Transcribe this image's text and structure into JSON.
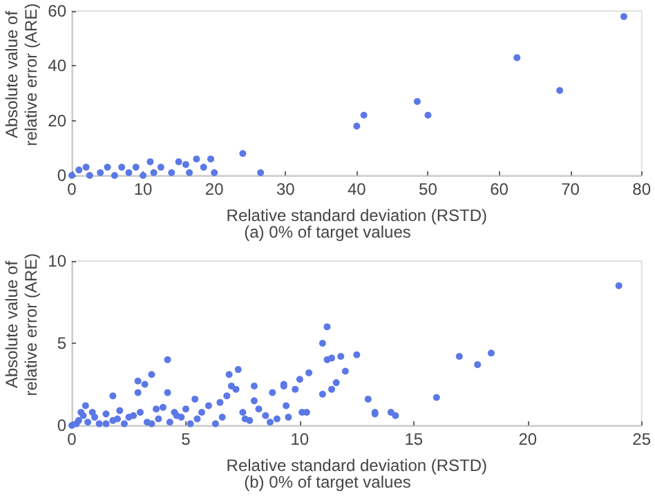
{
  "chart_data": [
    {
      "type": "scatter",
      "xlabel": "Relative standard deviation (RSTD)",
      "ylabel": "Absolute value of relative error (ARE)",
      "annotations": [
        "(a) 0% of target values"
      ],
      "xlim": [
        0,
        80
      ],
      "xticks": [
        0,
        10,
        20,
        30,
        40,
        50,
        60,
        70,
        80
      ],
      "ylim": [
        0,
        60
      ],
      "yticks": [
        0,
        20,
        40,
        60
      ],
      "grid": false,
      "marker": "circle",
      "series": [
        {
          "color": "#5b78e6",
          "x": [
            0,
            1,
            2,
            2.5,
            4,
            5,
            6,
            7,
            8,
            9,
            10,
            11,
            11.5,
            12.5,
            14,
            15,
            16,
            16.5,
            17.5,
            18.5,
            19.5,
            20,
            24,
            26.5,
            40,
            41,
            48.5,
            50,
            62.5,
            68.5,
            77.5
          ],
          "values": [
            0,
            2,
            3,
            0,
            1,
            3,
            0,
            3,
            1,
            3,
            0,
            5,
            1,
            3,
            1,
            5,
            4,
            1,
            6,
            3,
            6,
            1,
            8,
            1,
            18,
            22,
            27,
            22,
            43,
            31,
            58
          ]
        }
      ]
    },
    {
      "type": "scatter",
      "xlabel": "Relative standard deviation (RSTD)",
      "ylabel": "Absolute value of relative error (ARE)",
      "annotations": [
        "(b) 0% of target values"
      ],
      "xlim": [
        0,
        25
      ],
      "xticks": [
        0,
        5,
        10,
        15,
        20,
        25
      ],
      "ylim": [
        0,
        10
      ],
      "yticks": [
        0,
        5,
        10
      ],
      "grid": false,
      "marker": "circle",
      "series": [
        {
          "color": "#5b78e6",
          "x": [
            24,
            11.2,
            11,
            11.2,
            11.4,
            11.8,
            12.5,
            17,
            18.4,
            17.8,
            12,
            11.6,
            11.4,
            11,
            13,
            13.3,
            13.3,
            14,
            14.2,
            16,
            4.2,
            4.2,
            3.5,
            3.2,
            2.9,
            2.9,
            1.8,
            0.6,
            7.3,
            6.9,
            7,
            7.2,
            8,
            8.8,
            9.3,
            9.3,
            9.8,
            10,
            10.4,
            9.5,
            10.1,
            10.3,
            6.8,
            6.5,
            5.4,
            5,
            4.5,
            4,
            3.7,
            3,
            2.5,
            2,
            1.5,
            1,
            0.5,
            0.3,
            0,
            0.2,
            0.4,
            0.7,
            1.2,
            1.8,
            2.3,
            2.7,
            3.3,
            3.8,
            4.3,
            4.8,
            5.2,
            5.7,
            6,
            6.3,
            6.6,
            7.5,
            7.8,
            8.2,
            8.5,
            8.7,
            9,
            9.4,
            8,
            7.6,
            5.5,
            4.6,
            3.5,
            1.5,
            0.9,
            2.1
          ],
          "values": [
            8.5,
            6,
            5,
            4,
            4.1,
            4.2,
            4.3,
            4.2,
            4.4,
            3.7,
            3.3,
            2.6,
            2.2,
            1.9,
            1.6,
            0.7,
            0.8,
            0.8,
            0.6,
            1.7,
            4,
            2,
            3.1,
            2.5,
            2.7,
            2,
            1.8,
            1.2,
            3.4,
            3.1,
            2.4,
            2.2,
            2.4,
            2,
            2.5,
            2.4,
            2.2,
            2.8,
            3.2,
            0.5,
            0.8,
            0.8,
            1.8,
            1.4,
            1.6,
            1,
            0.8,
            1.1,
            1,
            0.8,
            0.5,
            0.4,
            0.7,
            0.5,
            0.6,
            0.3,
            0,
            0.1,
            0.8,
            0.2,
            0.1,
            0.3,
            0.1,
            0.6,
            0.2,
            0.4,
            0.2,
            0.5,
            0.1,
            0.8,
            1.2,
            0.1,
            0.5,
            0.8,
            0.3,
            1,
            0.6,
            0.2,
            0.4,
            1.2,
            1.5,
            0.4,
            0.4,
            0.6,
            0.1,
            0.1,
            0.8,
            0.9
          ]
        }
      ]
    }
  ]
}
